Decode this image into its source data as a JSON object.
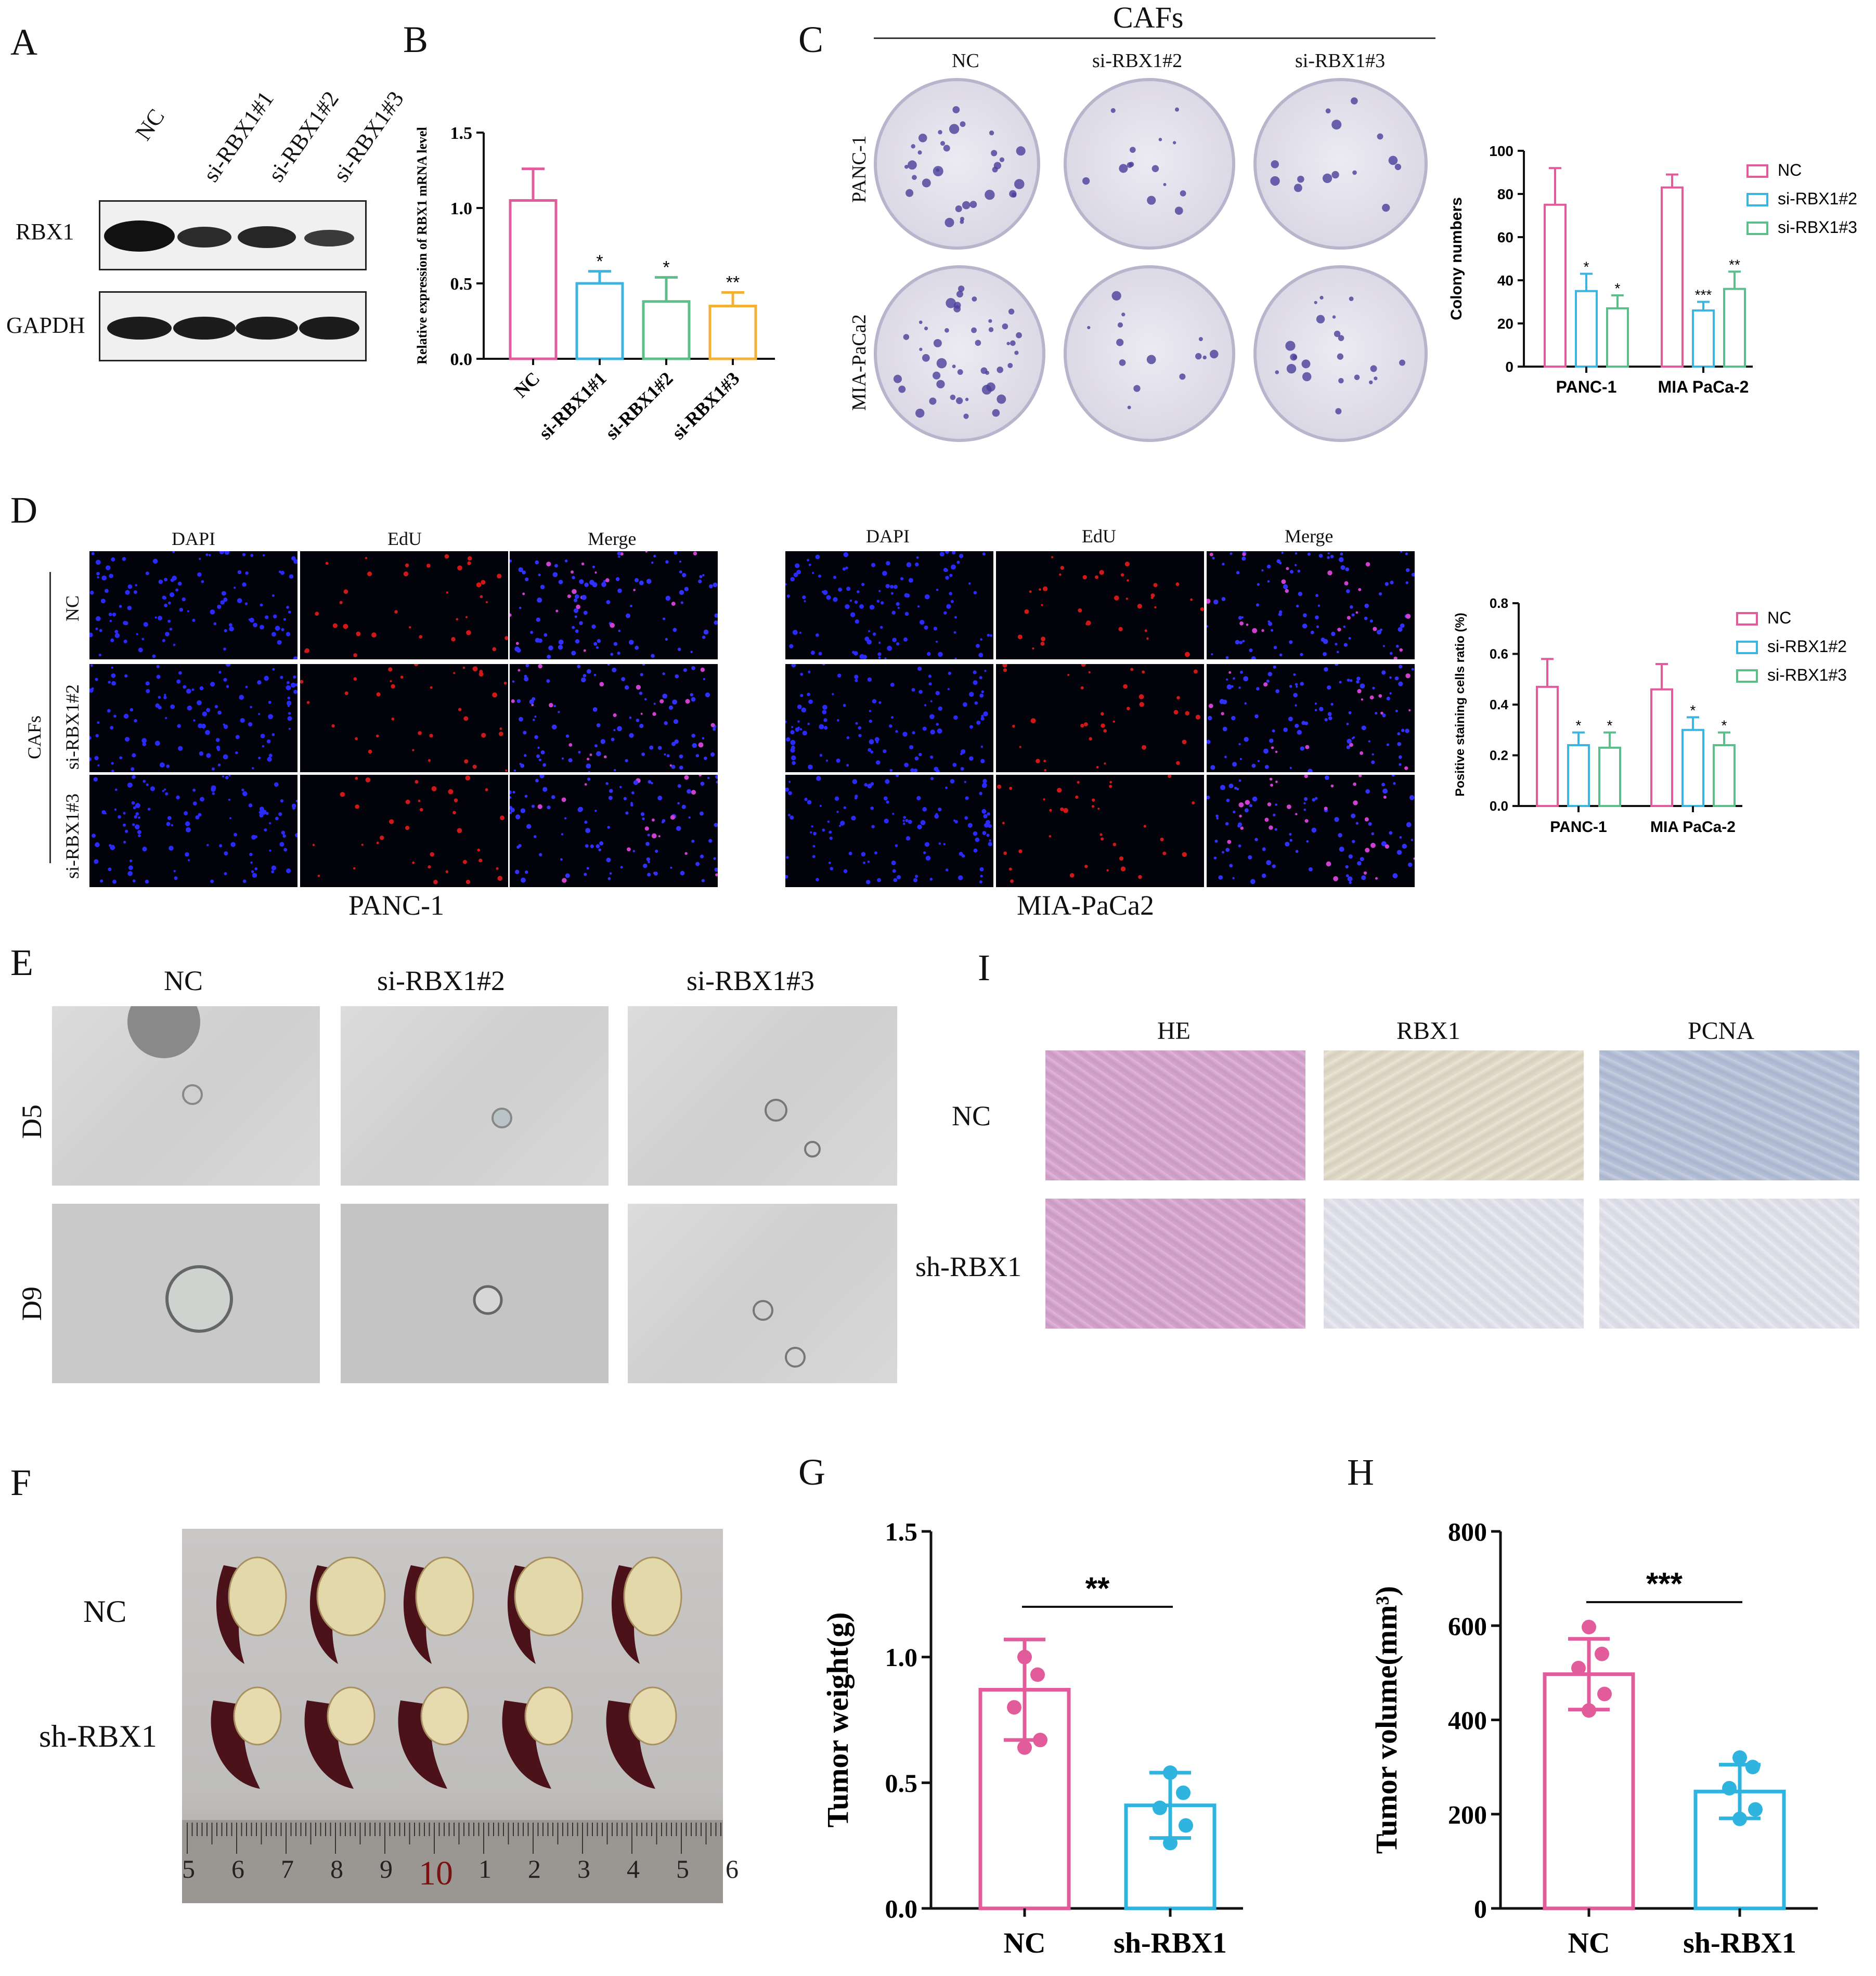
{
  "panels": {
    "A": {
      "letter": "A",
      "lanes": [
        "NC",
        "si-RBX1#1",
        "si-RBX1#2",
        "si-RBX1#3"
      ],
      "rows": [
        "RBX1",
        "GAPDH"
      ]
    },
    "B": {
      "letter": "B"
    },
    "C": {
      "letter": "C",
      "header": "CAFs",
      "columns": [
        "NC",
        "si-RBX1#2",
        "si-RBX1#3"
      ],
      "rows": [
        "PANC-1",
        "MIA-PaCa2"
      ]
    },
    "D": {
      "letter": "D",
      "columns": [
        "DAPI",
        "EdU",
        "Merge"
      ],
      "row_group": "CAFs",
      "rows": [
        "NC",
        "si-RBX1#2",
        "si-RBX1#3"
      ],
      "captions": [
        "PANC-1",
        "MIA-PaCa2"
      ]
    },
    "E": {
      "letter": "E",
      "columns": [
        "NC",
        "si-RBX1#2",
        "si-RBX1#3"
      ],
      "rows": [
        "D5",
        "D9"
      ]
    },
    "I": {
      "letter": "I",
      "columns": [
        "HE",
        "RBX1",
        "PCNA"
      ],
      "rows": [
        "NC",
        "sh-RBX1"
      ]
    },
    "F": {
      "letter": "F",
      "rows": [
        "NC",
        "sh-RBX1"
      ],
      "ruler": [
        "5",
        "6",
        "7",
        "8",
        "9",
        "10",
        "1",
        "2",
        "3",
        "4",
        "5",
        "6"
      ]
    },
    "G": {
      "letter": "G"
    },
    "H": {
      "letter": "H"
    }
  },
  "chart_data": [
    {
      "id": "B",
      "type": "bar",
      "ylabel": "Relative expression of  RBX1 mRNA level",
      "categories": [
        "NC",
        "si-RBX1#1",
        "si-RBX1#2",
        "si-RBX1#3"
      ],
      "values": [
        1.05,
        0.5,
        0.38,
        0.35
      ],
      "errors": [
        0.21,
        0.08,
        0.16,
        0.09
      ],
      "significance": [
        "",
        "*",
        "*",
        "**"
      ],
      "colors": [
        "#e25c9b",
        "#3cb4e0",
        "#5cbf8a",
        "#f2b134"
      ],
      "ylim": [
        0,
        1.5
      ],
      "yticks": [
        "0.0",
        "0.5",
        "1.0",
        "1.5"
      ]
    },
    {
      "id": "C",
      "type": "bar",
      "ylabel": "Colony numbers",
      "categories": [
        "PANC-1",
        "MIA PaCa-2"
      ],
      "legend": [
        "NC",
        "si-RBX1#2",
        "si-RBX1#3"
      ],
      "series": [
        {
          "name": "NC",
          "values": [
            75,
            83
          ],
          "errors": [
            17,
            6
          ],
          "significance": [
            "",
            ""
          ]
        },
        {
          "name": "si-RBX1#2",
          "values": [
            35,
            26
          ],
          "errors": [
            8,
            4
          ],
          "significance": [
            "*",
            "***"
          ]
        },
        {
          "name": "si-RBX1#3",
          "values": [
            27,
            36
          ],
          "errors": [
            6,
            8
          ],
          "significance": [
            "*",
            "**"
          ]
        }
      ],
      "colors": [
        "#e25c9b",
        "#3cb4e0",
        "#5cbf8a"
      ],
      "ylim": [
        0,
        100
      ],
      "yticks": [
        "0",
        "20",
        "40",
        "60",
        "80",
        "100"
      ]
    },
    {
      "id": "D",
      "type": "bar",
      "ylabel": "Positive staining cells ratio (%)",
      "categories": [
        "PANC-1",
        "MIA PaCa-2"
      ],
      "legend": [
        "NC",
        "si-RBX1#2",
        "si-RBX1#3"
      ],
      "series": [
        {
          "name": "NC",
          "values": [
            0.47,
            0.46
          ],
          "errors": [
            0.11,
            0.1
          ],
          "significance": [
            "",
            ""
          ]
        },
        {
          "name": "si-RBX1#2",
          "values": [
            0.24,
            0.3
          ],
          "errors": [
            0.05,
            0.05
          ],
          "significance": [
            "*",
            "*"
          ]
        },
        {
          "name": "si-RBX1#3",
          "values": [
            0.23,
            0.24
          ],
          "errors": [
            0.06,
            0.05
          ],
          "significance": [
            "*",
            "*"
          ]
        }
      ],
      "colors": [
        "#e25c9b",
        "#3cb4e0",
        "#5cbf8a"
      ],
      "ylim": [
        0,
        0.8
      ],
      "yticks": [
        "0.0",
        "0.2",
        "0.4",
        "0.6",
        "0.8"
      ]
    },
    {
      "id": "G",
      "type": "bar",
      "ylabel": "Tumor weight(g)",
      "categories": [
        "NC",
        "sh-RBX1"
      ],
      "values": [
        0.87,
        0.41
      ],
      "errors": [
        0.2,
        0.13
      ],
      "points": [
        [
          1.0,
          0.93,
          0.8,
          0.67,
          0.64
        ],
        [
          0.54,
          0.46,
          0.4,
          0.33,
          0.26
        ]
      ],
      "significance": "**",
      "colors": [
        "#e25c9b",
        "#2fb4e0"
      ],
      "ylim": [
        0,
        1.5
      ],
      "yticks": [
        "0.0",
        "0.5",
        "1.0",
        "1.5"
      ]
    },
    {
      "id": "H",
      "type": "bar",
      "ylabel": "Tumor volume(mm³)",
      "categories": [
        "NC",
        "sh-RBX1"
      ],
      "values": [
        497,
        248
      ],
      "errors": [
        75,
        57
      ],
      "points": [
        [
          597,
          540,
          510,
          455,
          420
        ],
        [
          320,
          300,
          255,
          210,
          190
        ]
      ],
      "significance": "***",
      "colors": [
        "#e25c9b",
        "#2fb4e0"
      ],
      "ylim": [
        0,
        800
      ],
      "yticks": [
        "0",
        "200",
        "400",
        "600",
        "800"
      ]
    }
  ]
}
